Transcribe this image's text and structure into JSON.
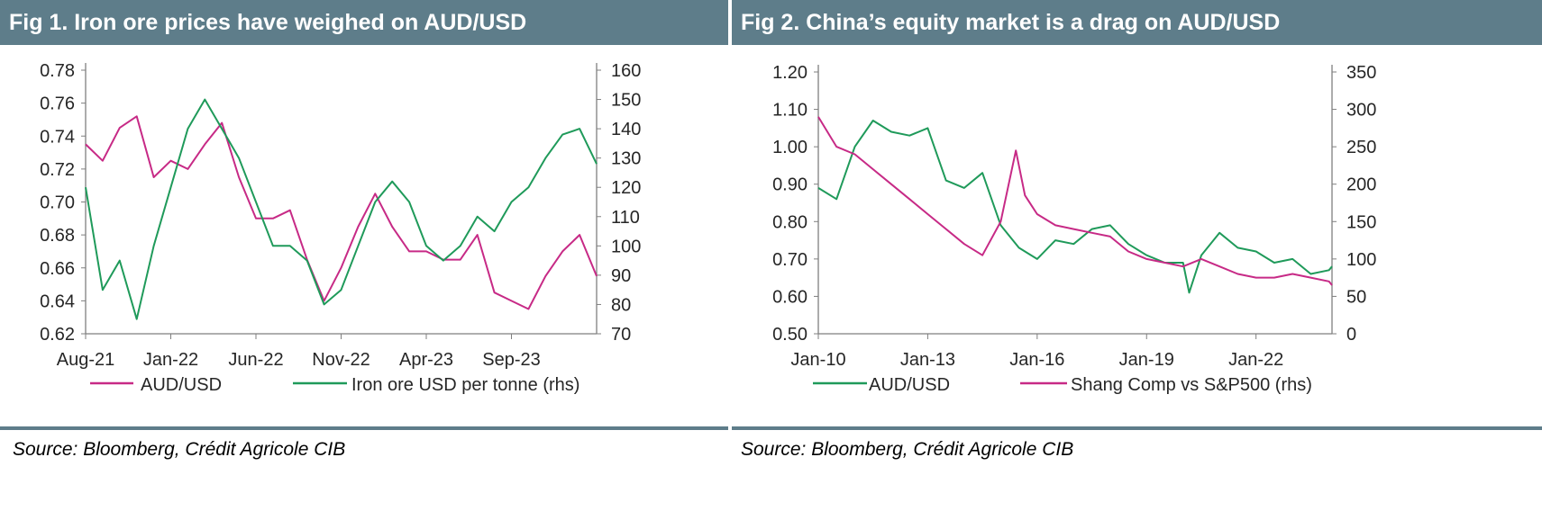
{
  "colors": {
    "header_bg": "#5e7d8a",
    "aud_fig1": "#c72a86",
    "iron": "#1f9a5a",
    "aud_fig2": "#1f9a5a",
    "shang": "#c72a86"
  },
  "fig1": {
    "title": "Fig 1. Iron ore prices have weighed on AUD/USD",
    "source": "Source: Bloomberg, Crédit Agricole CIB"
  },
  "fig2": {
    "title": "Fig 2. China’s equity market is a drag on AUD/USD",
    "source": "Source: Bloomberg, Crédit Agricole CIB"
  },
  "chart_data": [
    {
      "type": "line",
      "title": "Fig 1. Iron ore prices have weighed on AUD/USD",
      "x_ticks": [
        "Aug-21",
        "Jan-22",
        "Jun-22",
        "Nov-22",
        "Apr-23",
        "Sep-23"
      ],
      "x_range": [
        "2021-08",
        "2024-02"
      ],
      "y_left": {
        "range": [
          0.62,
          0.78
        ],
        "ticks": [
          "0.62",
          "0.64",
          "0.66",
          "0.68",
          "0.70",
          "0.72",
          "0.74",
          "0.76",
          "0.78"
        ]
      },
      "y_right": {
        "range": [
          70,
          160
        ],
        "ticks": [
          "70",
          "80",
          "90",
          "100",
          "110",
          "120",
          "130",
          "140",
          "150",
          "160"
        ]
      },
      "legend_position": "bottom",
      "grid": false,
      "series": [
        {
          "name": "AUD/USD",
          "axis": "left",
          "x": [
            "2021-08",
            "2021-09",
            "2021-10",
            "2021-11",
            "2021-12",
            "2022-01",
            "2022-02",
            "2022-03",
            "2022-04",
            "2022-05",
            "2022-06",
            "2022-07",
            "2022-08",
            "2022-09",
            "2022-10",
            "2022-11",
            "2022-12",
            "2023-01",
            "2023-02",
            "2023-03",
            "2023-04",
            "2023-05",
            "2023-06",
            "2023-07",
            "2023-08",
            "2023-09",
            "2023-10",
            "2023-11",
            "2023-12",
            "2024-01",
            "2024-02"
          ],
          "values": [
            0.735,
            0.725,
            0.745,
            0.752,
            0.715,
            0.725,
            0.72,
            0.735,
            0.748,
            0.715,
            0.69,
            0.69,
            0.695,
            0.665,
            0.64,
            0.66,
            0.685,
            0.705,
            0.685,
            0.67,
            0.67,
            0.665,
            0.665,
            0.68,
            0.645,
            0.64,
            0.635,
            0.655,
            0.67,
            0.68,
            0.655
          ]
        },
        {
          "name": "Iron ore USD per tonne (rhs)",
          "axis": "right",
          "x": [
            "2021-08",
            "2021-09",
            "2021-10",
            "2021-11",
            "2021-12",
            "2022-01",
            "2022-02",
            "2022-03",
            "2022-04",
            "2022-05",
            "2022-06",
            "2022-07",
            "2022-08",
            "2022-09",
            "2022-10",
            "2022-11",
            "2022-12",
            "2023-01",
            "2023-02",
            "2023-03",
            "2023-04",
            "2023-05",
            "2023-06",
            "2023-07",
            "2023-08",
            "2023-09",
            "2023-10",
            "2023-11",
            "2023-12",
            "2024-01",
            "2024-02"
          ],
          "values": [
            120,
            85,
            95,
            75,
            100,
            120,
            140,
            150,
            140,
            130,
            115,
            100,
            100,
            95,
            80,
            85,
            100,
            115,
            122,
            115,
            100,
            95,
            100,
            110,
            105,
            115,
            120,
            130,
            138,
            140,
            128
          ]
        }
      ]
    },
    {
      "type": "line",
      "title": "Fig 2. China’s equity market is a drag on AUD/USD",
      "x_ticks": [
        "Jan-10",
        "Jan-13",
        "Jan-16",
        "Jan-19",
        "Jan-22"
      ],
      "x_range": [
        "2010-01",
        "2024-02"
      ],
      "y_left": {
        "range": [
          0.5,
          1.2
        ],
        "ticks": [
          "0.50",
          "0.60",
          "0.70",
          "0.80",
          "0.90",
          "1.00",
          "1.10",
          "1.20"
        ]
      },
      "y_right": {
        "range": [
          0,
          350
        ],
        "ticks": [
          "0",
          "50",
          "100",
          "150",
          "200",
          "250",
          "300",
          "350"
        ]
      },
      "legend_position": "bottom",
      "grid": false,
      "series": [
        {
          "name": "AUD/USD",
          "axis": "left",
          "x": [
            "2010-01",
            "2010-07",
            "2011-01",
            "2011-07",
            "2012-01",
            "2012-07",
            "2013-01",
            "2013-07",
            "2014-01",
            "2014-07",
            "2015-01",
            "2015-07",
            "2016-01",
            "2016-07",
            "2017-01",
            "2017-07",
            "2018-01",
            "2018-07",
            "2019-01",
            "2019-07",
            "2020-01",
            "2020-03",
            "2020-07",
            "2021-01",
            "2021-07",
            "2022-01",
            "2022-07",
            "2023-01",
            "2023-07",
            "2024-01",
            "2024-02"
          ],
          "values": [
            0.89,
            0.86,
            1.0,
            1.07,
            1.04,
            1.03,
            1.05,
            0.91,
            0.89,
            0.93,
            0.79,
            0.73,
            0.7,
            0.75,
            0.74,
            0.78,
            0.79,
            0.74,
            0.71,
            0.69,
            0.69,
            0.61,
            0.71,
            0.77,
            0.73,
            0.72,
            0.69,
            0.7,
            0.66,
            0.67,
            0.68
          ]
        },
        {
          "name": "Shang Comp vs S&P500 (rhs)",
          "axis": "right",
          "x": [
            "2010-01",
            "2010-07",
            "2011-01",
            "2011-07",
            "2012-01",
            "2012-07",
            "2013-01",
            "2013-07",
            "2014-01",
            "2014-07",
            "2015-01",
            "2015-06",
            "2015-09",
            "2016-01",
            "2016-07",
            "2017-01",
            "2017-07",
            "2018-01",
            "2018-07",
            "2019-01",
            "2019-07",
            "2020-01",
            "2020-07",
            "2021-01",
            "2021-07",
            "2022-01",
            "2022-07",
            "2023-01",
            "2023-07",
            "2024-01",
            "2024-02"
          ],
          "values": [
            290,
            250,
            240,
            220,
            200,
            180,
            160,
            140,
            120,
            105,
            150,
            245,
            185,
            160,
            145,
            140,
            135,
            130,
            110,
            100,
            95,
            90,
            100,
            90,
            80,
            75,
            75,
            80,
            75,
            70,
            65
          ]
        }
      ]
    }
  ]
}
